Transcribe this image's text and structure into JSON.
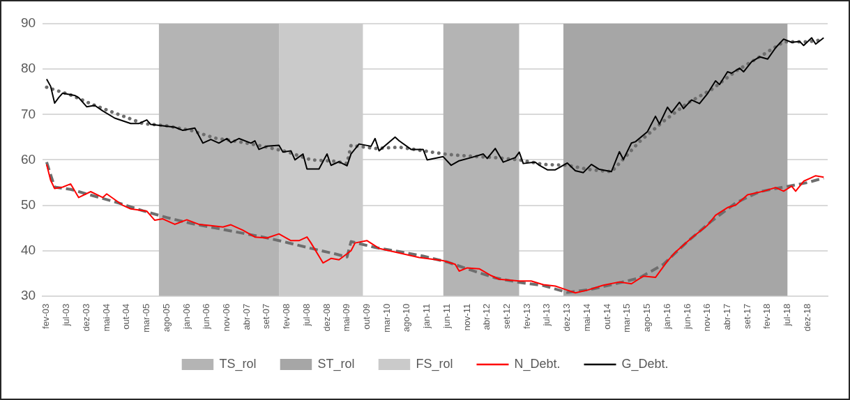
{
  "chart_data": {
    "type": "line",
    "marker": "none",
    "grid": "y",
    "legend": "bottom",
    "xlim": [
      "2003-01",
      "2019-05"
    ],
    "ylim": [
      30,
      90
    ],
    "yticks": [
      30,
      40,
      50,
      60,
      70,
      80,
      90
    ],
    "xticks": [
      {
        "value": "2003-02",
        "label": "fev-03"
      },
      {
        "value": "2003-07",
        "label": "jul-03"
      },
      {
        "value": "2003-12",
        "label": "dez-03"
      },
      {
        "value": "2004-05",
        "label": "mai-04"
      },
      {
        "value": "2004-10",
        "label": "out-04"
      },
      {
        "value": "2005-03",
        "label": "mar-05"
      },
      {
        "value": "2005-08",
        "label": "ago-05"
      },
      {
        "value": "2006-01",
        "label": "jan-06"
      },
      {
        "value": "2006-06",
        "label": "jun-06"
      },
      {
        "value": "2006-11",
        "label": "nov-06"
      },
      {
        "value": "2007-04",
        "label": "abr-07"
      },
      {
        "value": "2007-09",
        "label": "set-07"
      },
      {
        "value": "2008-02",
        "label": "fev-08"
      },
      {
        "value": "2008-07",
        "label": "jul-08"
      },
      {
        "value": "2008-12",
        "label": "dez-08"
      },
      {
        "value": "2009-05",
        "label": "mai-09"
      },
      {
        "value": "2009-10",
        "label": "out-09"
      },
      {
        "value": "2010-03",
        "label": "mar-10"
      },
      {
        "value": "2010-08",
        "label": "ago-10"
      },
      {
        "value": "2011-01",
        "label": "jan-11"
      },
      {
        "value": "2011-06",
        "label": "jun-11"
      },
      {
        "value": "2011-11",
        "label": "nov-11"
      },
      {
        "value": "2012-04",
        "label": "abr-12"
      },
      {
        "value": "2012-09",
        "label": "set-12"
      },
      {
        "value": "2013-02",
        "label": "fev-13"
      },
      {
        "value": "2013-07",
        "label": "jul-13"
      },
      {
        "value": "2013-12",
        "label": "dez-13"
      },
      {
        "value": "2014-05",
        "label": "mai-14"
      },
      {
        "value": "2014-10",
        "label": "out-14"
      },
      {
        "value": "2015-03",
        "label": "mar-15"
      },
      {
        "value": "2015-08",
        "label": "ago-15"
      },
      {
        "value": "2016-01",
        "label": "jan-16"
      },
      {
        "value": "2016-06",
        "label": "jun-16"
      },
      {
        "value": "2016-11",
        "label": "nov-16"
      },
      {
        "value": "2017-04",
        "label": "abr-17"
      },
      {
        "value": "2017-09",
        "label": "set-17"
      },
      {
        "value": "2018-02",
        "label": "fev-18"
      },
      {
        "value": "2018-07",
        "label": "jul-18"
      },
      {
        "value": "2018-12",
        "label": "dez-18"
      }
    ],
    "bands": [
      {
        "axis": "x",
        "from": "2005-06",
        "to": "2007-12",
        "label": "TS_rol",
        "color": "#b4b4b4"
      },
      {
        "axis": "x",
        "from": "2011-05",
        "to": "2012-12",
        "color": "#b4b4b4"
      },
      {
        "axis": "x",
        "from": "2013-11",
        "to": "2018-07",
        "label": "ST_rol",
        "color": "#a6a6a6"
      },
      {
        "axis": "x",
        "from": "2007-12",
        "to": "2009-09",
        "label": "FS_rol",
        "color": "#cacaca"
      }
    ],
    "series": [
      {
        "color": "#6e6e6e",
        "line_style": "dotted",
        "x": [
          "2003-02",
          "2003-08",
          "2004-02",
          "2004-08",
          "2005-02",
          "2005-08",
          "2006-02",
          "2006-08",
          "2007-02",
          "2007-08",
          "2008-02",
          "2008-08",
          "2009-02",
          "2009-05",
          "2009-06",
          "2009-12",
          "2010-06",
          "2010-12",
          "2011-06",
          "2011-12",
          "2012-06",
          "2012-12",
          "2013-06",
          "2013-12",
          "2014-06",
          "2014-11",
          "2014-12",
          "2015-06",
          "2015-12",
          "2016-06",
          "2016-12",
          "2017-06",
          "2017-12",
          "2018-06",
          "2018-12",
          "2019-04"
        ],
        "values": [
          76,
          74.3,
          72,
          70,
          68,
          67.5,
          66.5,
          64.8,
          64,
          63,
          61.8,
          60,
          59.7,
          59.2,
          63.2,
          62.5,
          62.8,
          62,
          61.2,
          60.8,
          60.5,
          60,
          59,
          58.8,
          57.8,
          57.4,
          58.3,
          64,
          68.5,
          72.5,
          75.5,
          79.5,
          82.7,
          86,
          86,
          86.5
        ]
      },
      {
        "color": "#6e6e6e",
        "line_style": "dashed",
        "x": [
          "2003-02",
          "2003-04",
          "2003-08",
          "2004-02",
          "2004-08",
          "2005-02",
          "2005-08",
          "2006-02",
          "2006-08",
          "2007-02",
          "2007-08",
          "2008-02",
          "2008-08",
          "2009-02",
          "2009-05",
          "2009-06",
          "2009-12",
          "2010-06",
          "2010-12",
          "2011-06",
          "2011-12",
          "2012-06",
          "2012-12",
          "2013-06",
          "2013-12",
          "2014-06",
          "2014-12",
          "2015-06",
          "2015-12",
          "2016-06",
          "2016-12",
          "2017-06",
          "2017-12",
          "2018-06",
          "2018-12",
          "2019-04"
        ],
        "values": [
          59.5,
          54,
          53.5,
          52,
          50.5,
          48.8,
          47.3,
          46,
          45,
          44,
          43,
          41.8,
          40.5,
          39.3,
          38.6,
          42,
          40.7,
          39.8,
          38.8,
          37.5,
          35.7,
          34,
          33,
          32.3,
          30.8,
          31.5,
          32.7,
          34,
          37,
          42,
          46.5,
          50.5,
          53,
          54,
          55,
          56
        ]
      },
      {
        "name": "N_Debt.",
        "color": "#ff0000",
        "line_style": "solid",
        "x": [
          "2003-02",
          "2003-03",
          "2003-04",
          "2003-06",
          "2003-08",
          "2003-10",
          "2004-01",
          "2004-04",
          "2004-05",
          "2004-09",
          "2004-11",
          "2005-03",
          "2005-05",
          "2005-07",
          "2005-10",
          "2006-01",
          "2006-04",
          "2006-07",
          "2006-10",
          "2006-12",
          "2007-03",
          "2007-06",
          "2007-09",
          "2007-12",
          "2008-03",
          "2008-05",
          "2008-07",
          "2008-08",
          "2008-11",
          "2009-01",
          "2009-03",
          "2009-06",
          "2009-07",
          "2009-10",
          "2010-01",
          "2010-06",
          "2010-11",
          "2011-05",
          "2011-08",
          "2011-09",
          "2011-11",
          "2012-02",
          "2012-05",
          "2012-07",
          "2012-12",
          "2013-03",
          "2013-06",
          "2013-09",
          "2013-12",
          "2014-02",
          "2014-05",
          "2014-09",
          "2015-01",
          "2015-04",
          "2015-07",
          "2015-10",
          "2016-01",
          "2016-03",
          "2016-07",
          "2016-11",
          "2017-01",
          "2017-04",
          "2017-06",
          "2017-09",
          "2018-01",
          "2018-04",
          "2018-06",
          "2018-08",
          "2018-09",
          "2018-11",
          "2019-02",
          "2019-04"
        ],
        "values": [
          59,
          55.5,
          53.7,
          54,
          54.7,
          51.7,
          53,
          51.7,
          52.5,
          50,
          49.2,
          48.7,
          46.7,
          47,
          45.8,
          46.8,
          45.8,
          45.5,
          45.2,
          45.7,
          44.5,
          43,
          42.8,
          43.7,
          42.2,
          42.2,
          43,
          41.7,
          37.3,
          38.3,
          38,
          40,
          41.7,
          42.2,
          40.5,
          39.5,
          38.5,
          37.8,
          37,
          35.5,
          36.2,
          36,
          34.5,
          33.7,
          33.3,
          33.3,
          32.5,
          32.2,
          31.3,
          30.7,
          31.3,
          32.4,
          33.1,
          32.7,
          34.4,
          34.1,
          37.7,
          39.7,
          42.8,
          45.6,
          47.8,
          49.5,
          50,
          52.3,
          53.1,
          53.9,
          53.1,
          54.2,
          53.1,
          55.3,
          56.5,
          56.2
        ]
      },
      {
        "name": "G_Debt.",
        "color": "#000000",
        "line_style": "solid",
        "x": [
          "2003-02",
          "2003-03",
          "2003-04",
          "2003-05",
          "2003-06",
          "2003-09",
          "2003-10",
          "2003-12",
          "2004-02",
          "2004-04",
          "2004-07",
          "2004-11",
          "2005-01",
          "2005-03",
          "2005-04",
          "2005-10",
          "2005-12",
          "2006-03",
          "2006-05",
          "2006-07",
          "2006-09",
          "2006-11",
          "2006-12",
          "2007-02",
          "2007-05",
          "2007-06",
          "2007-07",
          "2007-09",
          "2007-12",
          "2008-01",
          "2008-03",
          "2008-04",
          "2008-06",
          "2008-07",
          "2008-10",
          "2008-12",
          "2009-01",
          "2009-03",
          "2009-05",
          "2009-06",
          "2009-08",
          "2009-11",
          "2009-12",
          "2010-01",
          "2010-05",
          "2010-06",
          "2010-09",
          "2010-12",
          "2011-01",
          "2011-05",
          "2011-07",
          "2011-09",
          "2011-12",
          "2012-03",
          "2012-04",
          "2012-06",
          "2012-08",
          "2012-11",
          "2012-12",
          "2013-01",
          "2013-04",
          "2013-05",
          "2013-07",
          "2013-09",
          "2013-12",
          "2014-02",
          "2014-04",
          "2014-06",
          "2014-08",
          "2014-11",
          "2015-01",
          "2015-02",
          "2015-04",
          "2015-05",
          "2015-08",
          "2015-10",
          "2015-11",
          "2016-01",
          "2016-02",
          "2016-04",
          "2016-05",
          "2016-07",
          "2016-09",
          "2016-11",
          "2017-01",
          "2017-02",
          "2017-04",
          "2017-05",
          "2017-07",
          "2017-08",
          "2017-10",
          "2017-12",
          "2018-02",
          "2018-04",
          "2018-06",
          "2018-08",
          "2018-10",
          "2018-11",
          "2019-01",
          "2019-02",
          "2019-04"
        ],
        "values": [
          77.8,
          76.2,
          72.5,
          73.7,
          74.7,
          74.2,
          73.7,
          71.7,
          72,
          70.8,
          69.2,
          68,
          68,
          68.8,
          67.8,
          67.2,
          66.5,
          67,
          63.7,
          64.5,
          63.7,
          64.7,
          63.8,
          64.7,
          63.7,
          64.2,
          62.3,
          63,
          63.2,
          61.7,
          62,
          60,
          61.3,
          58,
          58,
          61.3,
          58.8,
          59.6,
          58.7,
          61.3,
          63.5,
          63,
          64.7,
          62,
          65,
          64.2,
          62.3,
          62.3,
          60,
          60.7,
          58.8,
          59.8,
          60.5,
          61.3,
          60.3,
          62.5,
          59.5,
          60.5,
          61.7,
          59.2,
          59.5,
          58.8,
          57.8,
          57.8,
          59.3,
          57.6,
          57.2,
          59,
          57.9,
          57.4,
          61.8,
          60.1,
          63.7,
          64,
          66.2,
          69.6,
          67.9,
          71.6,
          70.4,
          72.7,
          71.3,
          73.2,
          72.4,
          74.6,
          77.4,
          76.6,
          79.4,
          79.1,
          80.2,
          79.4,
          81.6,
          82.7,
          82.2,
          84.7,
          86.6,
          85.9,
          86.1,
          85.2,
          86.9,
          85.5,
          86.9
        ]
      }
    ]
  }
}
